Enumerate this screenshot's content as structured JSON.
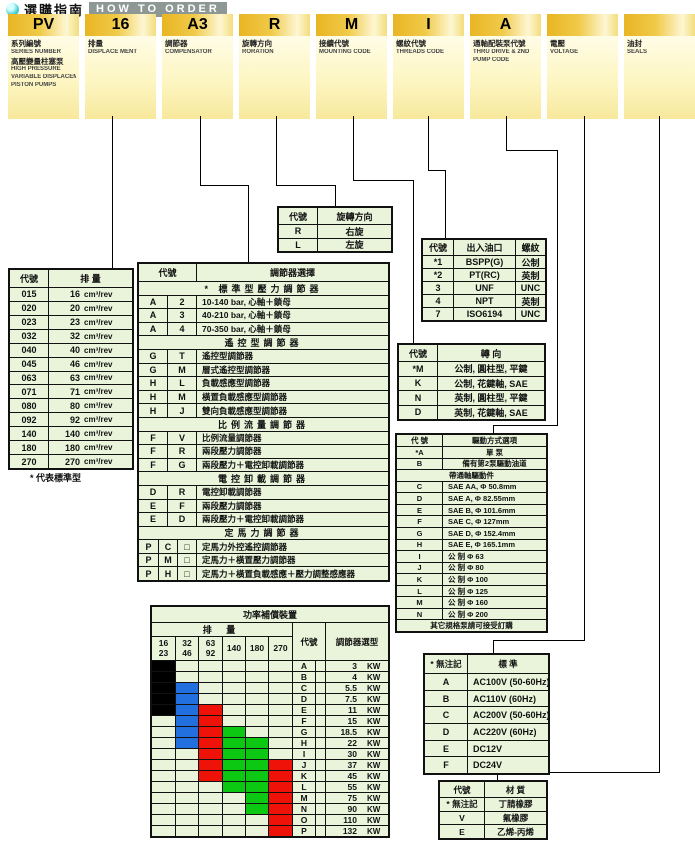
{
  "title": {
    "cn": "選購指南",
    "en": "HOW TO ORDER"
  },
  "icons": {
    "bullet": "teal-sphere-icon"
  },
  "header_columns": [
    {
      "code": "PV",
      "lines": [
        "系列編號",
        "SERIES NUMBER",
        "高壓變量柱塞泵",
        "HIGH PRESSURE",
        "VARIABLE DISPLACEMENT",
        "PISTON PUMPS"
      ]
    },
    {
      "code": "16",
      "lines": [
        "排量",
        "DISPLACE MENT"
      ]
    },
    {
      "code": "A3",
      "lines": [
        "調節器",
        "COMPENSATOR"
      ]
    },
    {
      "code": "R",
      "lines": [
        "旋轉方向",
        "RORATION"
      ]
    },
    {
      "code": "M",
      "lines": [
        "接續代號",
        "MOUNTING CODE"
      ]
    },
    {
      "code": "I",
      "lines": [
        "螺紋代號",
        "THREADS CODE"
      ]
    },
    {
      "code": "A",
      "lines": [
        "通軸配裝泵代號",
        "THRU DRIVE & 2ND",
        "PUMP CODE"
      ]
    },
    {
      "code": "",
      "lines": [
        "電壓",
        "VOLTAGE"
      ]
    },
    {
      "code": "",
      "lines": [
        "油封",
        "SEALS"
      ]
    }
  ],
  "displacement_table": {
    "headers": [
      "代號",
      "排  量"
    ],
    "unit": "cm³/rev",
    "rows": [
      [
        "015",
        "16"
      ],
      [
        "020",
        "20"
      ],
      [
        "023",
        "23"
      ],
      [
        "032",
        "32"
      ],
      [
        "040",
        "40"
      ],
      [
        "045",
        "46"
      ],
      [
        "063",
        "63"
      ],
      [
        "071",
        "71"
      ],
      [
        "080",
        "80"
      ],
      [
        "092",
        "92"
      ],
      [
        "140",
        "140"
      ],
      [
        "180",
        "180"
      ],
      [
        "270",
        "270"
      ]
    ],
    "note": "* 代表標準型"
  },
  "compensator_table": {
    "headers": [
      "代號",
      "調節器選擇"
    ],
    "rows": [
      {
        "s": "* 標準型壓力調節器"
      },
      {
        "c": [
          "A",
          "2"
        ],
        "d": "10-140 bar,  心軸＋鎖母"
      },
      {
        "c": [
          "A",
          "3"
        ],
        "d": "40-210 bar,  心軸＋鎖母"
      },
      {
        "c": [
          "A",
          "4"
        ],
        "d": "70-350 bar,  心軸＋鎖母"
      },
      {
        "s": "遙控型調節器"
      },
      {
        "c": [
          "G",
          "T"
        ],
        "d": "遙控型調節器"
      },
      {
        "c": [
          "G",
          "M"
        ],
        "d": "層式遙控型調節器"
      },
      {
        "c": [
          "H",
          "L"
        ],
        "d": "負載感應型調節器"
      },
      {
        "c": [
          "H",
          "M"
        ],
        "d": "橫置負載感應型調節器"
      },
      {
        "c": [
          "H",
          "J"
        ],
        "d": "雙向負載感應型調節器"
      },
      {
        "s": "比例流量調節器"
      },
      {
        "c": [
          "F",
          "V"
        ],
        "d": "比例流量調節器"
      },
      {
        "c": [
          "F",
          "R"
        ],
        "d": "兩段壓力調節器"
      },
      {
        "c": [
          "F",
          "G"
        ],
        "d": "兩段壓力＋電控卸載調節器"
      },
      {
        "s": "電控卸載調節器"
      },
      {
        "c": [
          "D",
          "R"
        ],
        "d": "電控卸載調節器"
      },
      {
        "c": [
          "E",
          "F"
        ],
        "d": "兩段壓力調節器"
      },
      {
        "c": [
          "E",
          "D"
        ],
        "d": "兩段壓力＋電控卸載調節器"
      },
      {
        "s": "定馬力調節器"
      },
      {
        "c": [
          "P",
          "C",
          "□"
        ],
        "d": "定馬力外控遙控調節器"
      },
      {
        "c": [
          "P",
          "M",
          "□"
        ],
        "d": "定馬力＋橫置壓力調節器"
      },
      {
        "c": [
          "P",
          "H",
          "□"
        ],
        "d": "定馬力＋橫置負載感應＋壓力調整感應器"
      }
    ]
  },
  "rotation_table": {
    "headers": [
      "代號",
      "旋轉方向"
    ],
    "rows": [
      [
        "R",
        "右旋"
      ],
      [
        "L",
        "左旋"
      ]
    ]
  },
  "threads_table": {
    "headers": [
      "代號",
      "出入油口",
      "螺紋"
    ],
    "rows": [
      [
        "*1",
        "BSPP(G)",
        "公制"
      ],
      [
        "*2",
        "PT(RC)",
        "英制"
      ],
      [
        "3",
        "UNF",
        "UNC"
      ],
      [
        "4",
        "NPT",
        "英制"
      ],
      [
        "7",
        "ISO6194",
        "UNC"
      ]
    ]
  },
  "shaft_table": {
    "headers": [
      "代號",
      "轉  向"
    ],
    "rows": [
      [
        "*M",
        "公制, 圓柱型, 平鍵"
      ],
      [
        "K",
        "公制, 花鍵軸, SAE"
      ],
      [
        "N",
        "英制, 圓柱型, 平鍵"
      ],
      [
        "D",
        "英制, 花鍵軸, SAE"
      ]
    ]
  },
  "thru_drive_table": {
    "headers": [
      "代  號",
      "驅動方式選項"
    ],
    "rows": [
      {
        "c": "*A",
        "d": "單  泵",
        "m": 1
      },
      {
        "c": "B",
        "d": "備有第2泵驅動油道",
        "m": 1
      },
      {
        "s": "帶通軸驅動件"
      },
      {
        "c": "C",
        "d": "SAE AA,  Φ 50.8mm"
      },
      {
        "c": "D",
        "d": "SAE A,  Φ 82.55mm"
      },
      {
        "c": "E",
        "d": "SAE B,  Φ 101.6mm"
      },
      {
        "c": "F",
        "d": "SAE C,  Φ 127mm"
      },
      {
        "c": "G",
        "d": "SAE D,  Φ 152.4mm"
      },
      {
        "c": "H",
        "d": "SAE E,  Φ 165.1mm"
      },
      {
        "c": "I",
        "d": "公  制   Φ 63"
      },
      {
        "c": "J",
        "d": "公  制   Φ 80"
      },
      {
        "c": "K",
        "d": "公  制   Φ 100"
      },
      {
        "c": "L",
        "d": "公  制   Φ 125"
      },
      {
        "c": "M",
        "d": "公  制   Φ 160"
      },
      {
        "c": "N",
        "d": "公  制   Φ 200"
      },
      {
        "s": "其它規格泵請可接受訂購"
      }
    ]
  },
  "voltage_table": {
    "headers": [
      "* 無注記",
      "標  準"
    ],
    "rows": [
      [
        "A",
        "AC100V (50-60Hz)"
      ],
      [
        "B",
        "AC110V (60Hz)"
      ],
      [
        "C",
        "AC200V (50-60Hz)"
      ],
      [
        "D",
        "AC220V (60Hz)"
      ],
      [
        "E",
        "DC12V"
      ],
      [
        "F",
        "DC24V"
      ]
    ]
  },
  "seals_table": {
    "headers": [
      "代號",
      "材  質"
    ],
    "rows": [
      [
        "* 無注記",
        "丁腈橡膠"
      ],
      [
        "V",
        "氟橡膠"
      ],
      [
        "E",
        "乙烯-丙烯"
      ]
    ]
  },
  "power_table": {
    "title": "功率補償裝置",
    "disp_header": "排  量",
    "code_header": "代號",
    "type_header": "調節器選型",
    "columns": [
      "16\n23",
      "32\n46",
      "63\n92",
      "140",
      "180",
      "270"
    ],
    "unit": "KW",
    "colors": {
      "K": "#000000",
      "B": "#2270e0",
      "R": "#ee1208",
      "G": "#0cc812"
    },
    "rows": [
      {
        "code": "A",
        "kw": "3",
        "m": [
          "K",
          "",
          "",
          "",
          "",
          ""
        ]
      },
      {
        "code": "B",
        "kw": "4",
        "m": [
          "K",
          "",
          "",
          "",
          "",
          ""
        ]
      },
      {
        "code": "C",
        "kw": "5.5",
        "m": [
          "K",
          "B",
          "",
          "",
          "",
          ""
        ]
      },
      {
        "code": "D",
        "kw": "7.5",
        "m": [
          "K",
          "B",
          "",
          "",
          "",
          ""
        ]
      },
      {
        "code": "E",
        "kw": "11",
        "m": [
          "K",
          "B",
          "R",
          "",
          "",
          ""
        ]
      },
      {
        "code": "F",
        "kw": "15",
        "m": [
          "",
          "B",
          "R",
          "",
          "",
          ""
        ]
      },
      {
        "code": "G",
        "kw": "18.5",
        "m": [
          "",
          "B",
          "R",
          "G",
          "",
          ""
        ]
      },
      {
        "code": "H",
        "kw": "22",
        "m": [
          "",
          "B",
          "R",
          "G",
          "G",
          ""
        ]
      },
      {
        "code": "I",
        "kw": "30",
        "m": [
          "",
          "",
          "R",
          "G",
          "G",
          ""
        ]
      },
      {
        "code": "J",
        "kw": "37",
        "m": [
          "",
          "",
          "R",
          "G",
          "G",
          "R"
        ]
      },
      {
        "code": "K",
        "kw": "45",
        "m": [
          "",
          "",
          "R",
          "G",
          "G",
          "R"
        ]
      },
      {
        "code": "L",
        "kw": "55",
        "m": [
          "",
          "",
          "",
          "G",
          "G",
          "R"
        ]
      },
      {
        "code": "M",
        "kw": "75",
        "m": [
          "",
          "",
          "",
          "",
          "G",
          "R"
        ]
      },
      {
        "code": "N",
        "kw": "90",
        "m": [
          "",
          "",
          "",
          "",
          "G",
          "R"
        ]
      },
      {
        "code": "O",
        "kw": "110",
        "m": [
          "",
          "",
          "",
          "",
          "",
          "R"
        ]
      },
      {
        "code": "P",
        "kw": "132",
        "m": [
          "",
          "",
          "",
          "",
          "",
          "R"
        ]
      }
    ]
  }
}
